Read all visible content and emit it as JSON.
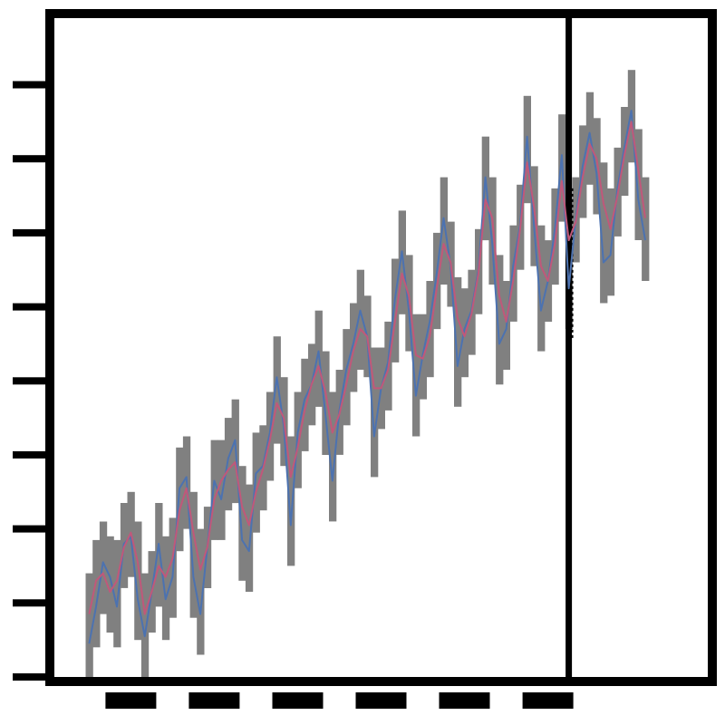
{
  "chart_data": {
    "type": "line",
    "title": "",
    "xlabel": "",
    "ylabel": "",
    "grid": false,
    "legend": "none",
    "colors": {
      "band": "#808080",
      "observed": "#4c72b0",
      "fitted": "#c0587a",
      "axes": "#000000",
      "divider": "#000000"
    },
    "x_start": 0,
    "x_step": 1,
    "xlim": [
      -5,
      89
    ],
    "ylim": [
      0,
      8.9
    ],
    "divider_x": 69,
    "band_halfwidth": 0.55,
    "series": [
      {
        "role": "observed",
        "values": [
          0.45,
          0.95,
          1.55,
          1.35,
          0.95,
          1.8,
          1.9,
          1.05,
          0.55,
          1.15,
          1.8,
          1.05,
          1.35,
          2.55,
          2.7,
          1.35,
          0.85,
          1.75,
          2.65,
          2.4,
          2.95,
          3.2,
          1.85,
          1.7,
          2.75,
          2.85,
          3.3,
          4.05,
          3.4,
          2.05,
          3.3,
          3.75,
          3.95,
          4.4,
          3.55,
          2.65,
          3.6,
          4.15,
          4.5,
          4.95,
          4.6,
          3.25,
          3.9,
          4.25,
          5.1,
          5.75,
          4.95,
          3.8,
          4.35,
          4.8,
          5.45,
          6.2,
          5.55,
          4.2,
          4.7,
          4.95,
          5.5,
          6.75,
          5.85,
          4.5,
          4.7,
          5.55,
          6.1,
          7.3,
          6.1,
          4.95,
          5.35,
          6.05,
          7.05,
          5.25,
          6.2,
          6.9,
          7.35,
          6.8,
          5.6,
          5.7,
          6.6,
          7.15,
          7.65,
          6.45,
          5.9
        ]
      },
      {
        "role": "fitted",
        "values": [
          0.85,
          1.3,
          1.4,
          1.15,
          1.3,
          1.75,
          1.95,
          1.55,
          0.85,
          1.15,
          1.5,
          1.35,
          1.6,
          2.25,
          2.55,
          1.95,
          1.45,
          1.75,
          2.4,
          2.65,
          2.8,
          2.9,
          2.3,
          2.05,
          2.5,
          2.8,
          3.2,
          3.7,
          3.5,
          2.7,
          3.1,
          3.6,
          3.95,
          4.2,
          3.85,
          3.3,
          3.55,
          3.95,
          4.4,
          4.7,
          4.6,
          3.9,
          3.9,
          4.15,
          4.8,
          5.45,
          5.15,
          4.35,
          4.3,
          4.6,
          5.25,
          5.85,
          5.6,
          4.85,
          4.6,
          4.9,
          5.45,
          6.45,
          6.2,
          5.15,
          4.8,
          5.35,
          6.05,
          6.95,
          6.35,
          5.55,
          5.35,
          5.85,
          6.7,
          5.9,
          6.15,
          6.75,
          7.2,
          7.0,
          6.4,
          6.05,
          6.5,
          7.05,
          7.5,
          6.85,
          6.2
        ]
      }
    ]
  }
}
